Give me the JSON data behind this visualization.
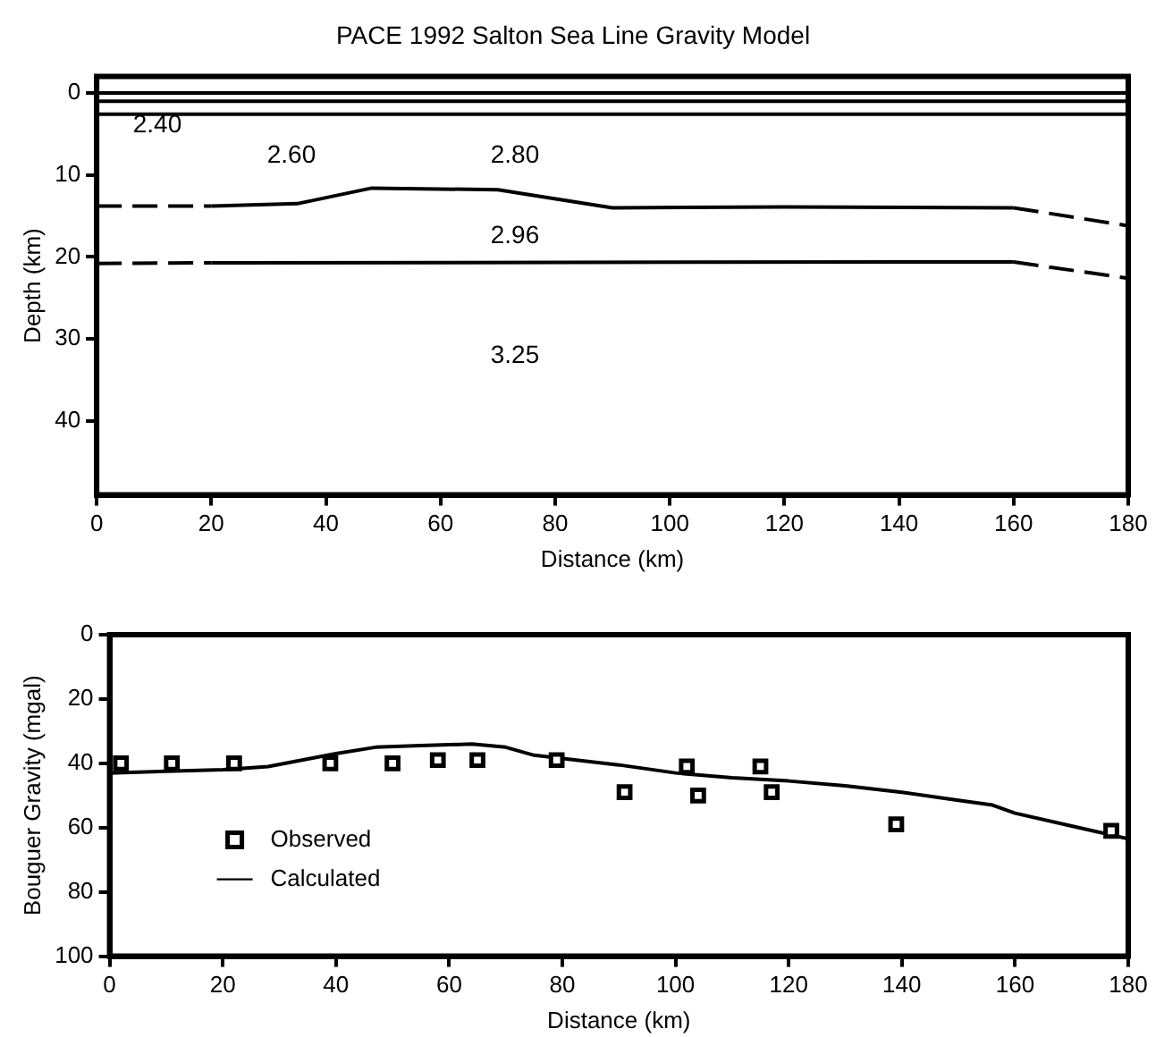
{
  "chart_data": [
    {
      "type": "line",
      "title": "PACE 1992 Salton Sea Line Gravity Model",
      "xlabel": "Distance (km)",
      "ylabel": "Depth (km)",
      "xlim": [
        0,
        180
      ],
      "xticks": [
        0,
        20,
        40,
        60,
        80,
        100,
        120,
        140,
        160,
        180
      ],
      "ylim": [
        49,
        -2
      ],
      "yticks": [
        0,
        10,
        20,
        30,
        40
      ],
      "grid": false,
      "series": [
        {
          "color": "#000000",
          "x": [
            0,
            180
          ],
          "values": [
            0,
            0
          ],
          "marker": "none",
          "line_style": "solid"
        },
        {
          "color": "#000000",
          "x": [
            0,
            180
          ],
          "values": [
            1,
            1
          ],
          "marker": "none",
          "line_style": "solid"
        },
        {
          "color": "#000000",
          "x": [
            0,
            180
          ],
          "values": [
            2.6,
            2.6
          ],
          "marker": "none",
          "line_style": "solid"
        },
        {
          "color": "#000000",
          "x": [
            0,
            20
          ],
          "values": [
            13.8,
            13.8
          ],
          "marker": "none",
          "line_style": "dashed"
        },
        {
          "color": "#000000",
          "x": [
            20,
            35,
            48,
            70,
            90,
            120,
            160
          ],
          "values": [
            13.8,
            13.5,
            11.6,
            11.8,
            14,
            13.9,
            14
          ],
          "marker": "none",
          "line_style": "solid"
        },
        {
          "color": "#000000",
          "x": [
            160,
            180
          ],
          "values": [
            14,
            16.2
          ],
          "marker": "none",
          "line_style": "dashed"
        },
        {
          "color": "#000000",
          "x": [
            0,
            20
          ],
          "values": [
            20.8,
            20.7
          ],
          "marker": "none",
          "line_style": "dashed"
        },
        {
          "color": "#000000",
          "x": [
            20,
            160
          ],
          "values": [
            20.7,
            20.6
          ],
          "marker": "none",
          "line_style": "solid"
        },
        {
          "color": "#000000",
          "x": [
            160,
            180
          ],
          "values": [
            20.6,
            22.6
          ],
          "marker": "none",
          "line_style": "dashed"
        }
      ],
      "annotations": [
        "2.40",
        "2.60",
        "2.80",
        "2.96",
        "3.25"
      ]
    },
    {
      "type": "scatter",
      "xlabel": "Distance (km)",
      "ylabel": "Bouguer Gravity (mgal)",
      "xlim": [
        0,
        180
      ],
      "xticks": [
        0,
        20,
        40,
        60,
        80,
        100,
        120,
        140,
        160,
        180
      ],
      "ylim": [
        100,
        0
      ],
      "yticks": [
        0,
        20,
        40,
        60,
        80,
        100
      ],
      "grid": false,
      "legend": "bottom left",
      "series": [
        {
          "name": "Observed",
          "color": "#000000",
          "marker": "square",
          "x": [
            2,
            11,
            22,
            39,
            50,
            58,
            65,
            79,
            91,
            102,
            104,
            115,
            117,
            139,
            177
          ],
          "values": [
            40,
            40,
            40,
            40,
            40,
            39,
            39,
            39,
            49,
            41,
            50,
            41,
            49,
            59,
            61
          ]
        },
        {
          "name": "Calculated",
          "type": "line",
          "color": "#000000",
          "marker": "none",
          "line_style": "solid",
          "x": [
            0,
            10,
            20,
            28,
            40,
            47,
            55,
            64,
            70,
            75,
            90,
            100,
            110,
            120,
            130,
            140,
            150,
            156,
            160,
            170,
            180
          ],
          "values": [
            43,
            42.5,
            42,
            41,
            37,
            35,
            34.5,
            34,
            35,
            37.5,
            40.5,
            43,
            44.5,
            45.5,
            47,
            49,
            51.5,
            53,
            55.5,
            59.5,
            63.5
          ]
        }
      ]
    }
  ]
}
